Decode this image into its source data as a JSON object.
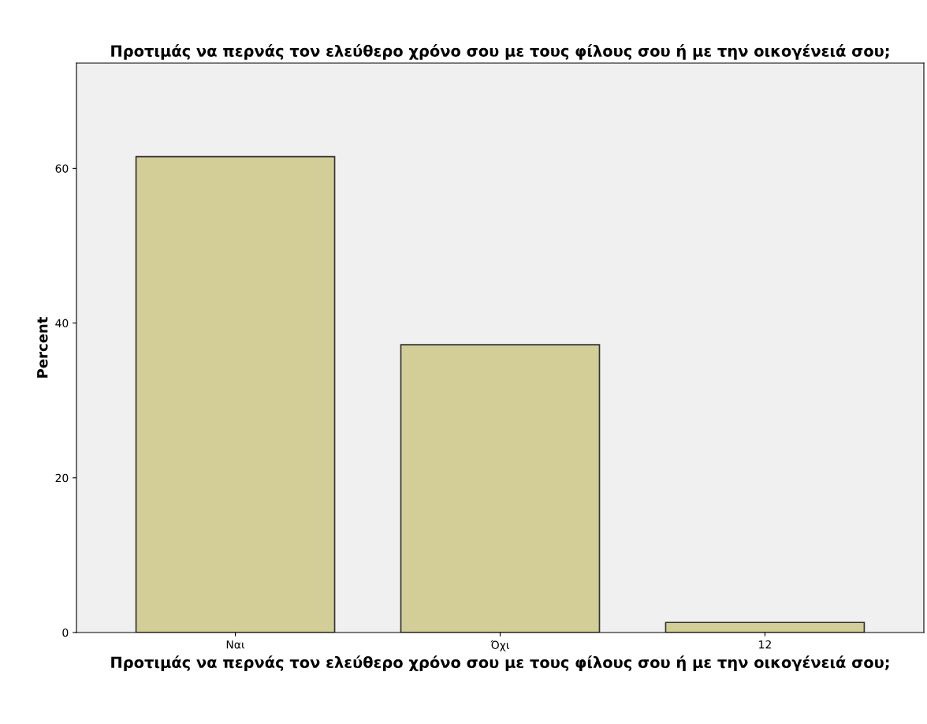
{
  "chart_data": {
    "type": "bar",
    "title": "Προτιμάς να περνάς τον ελεύθερο χρόνο σου με τους φίλους σου ή με την οικογένειά σου;",
    "xlabel": "Προτιμάς να περνάς τον ελεύθερο χρόνο σου με τους φίλους σου ή με την οικογένειά σου;",
    "ylabel": "Percent",
    "categories": [
      "Ναι",
      "Όχι",
      "12"
    ],
    "values": [
      61.5,
      37.2,
      1.3
    ],
    "color": "#d3ce97",
    "ylim": [
      0,
      73.6
    ],
    "yticks": [
      0,
      20,
      40,
      60
    ],
    "grid": false,
    "legend": false
  }
}
